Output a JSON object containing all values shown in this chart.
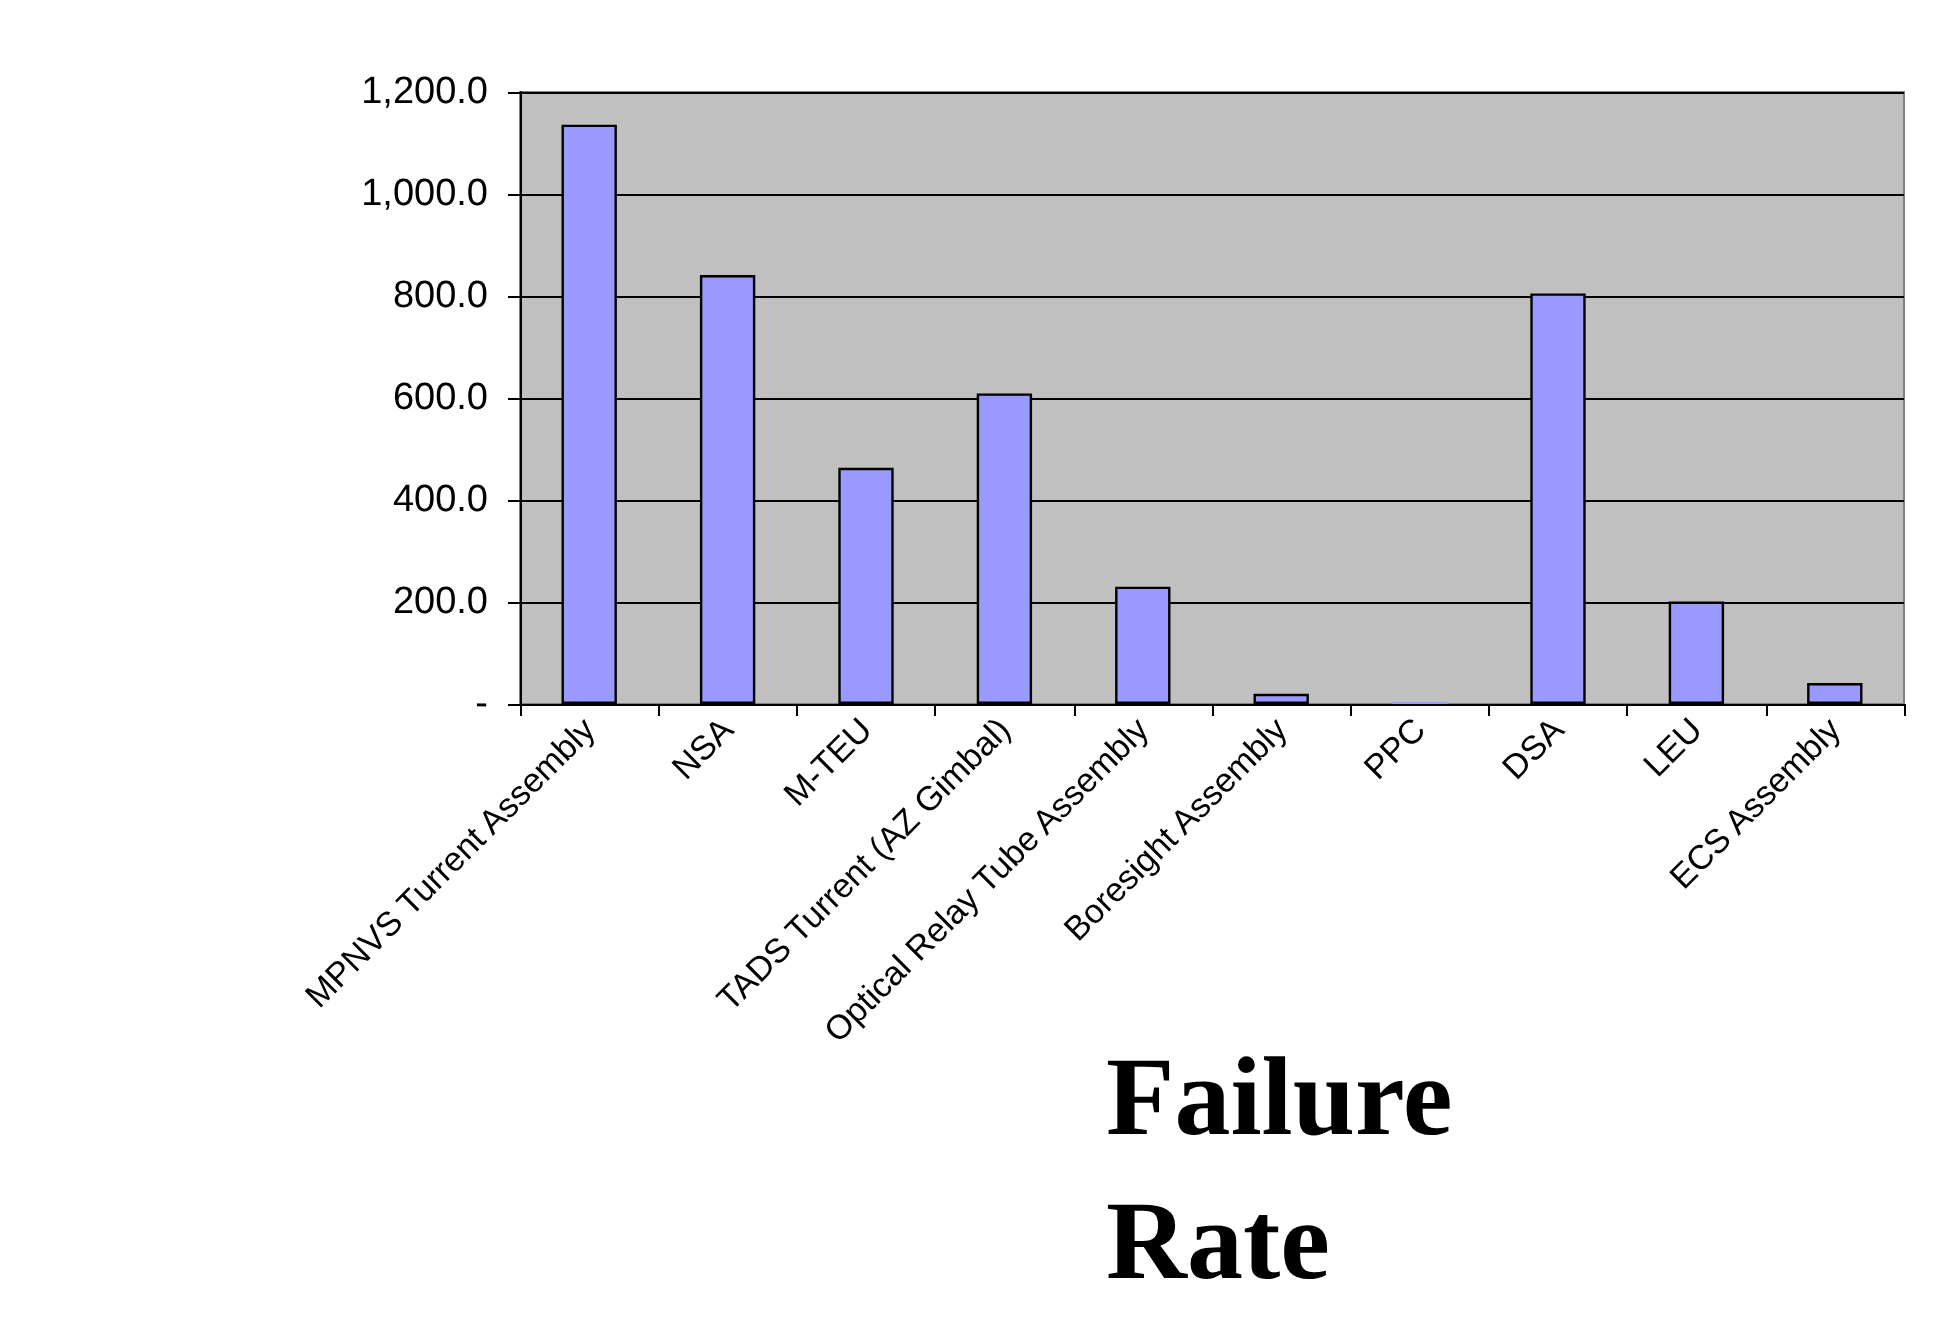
{
  "chart_data": {
    "type": "bar",
    "title": "Failure Rate",
    "categories": [
      "MPNVS Turrent Assembly",
      "NSA",
      "M-TEU",
      "TADS Turrent (AZ Gimbal)",
      "Optical Relay Tube Assembly",
      "Boresight Assembly",
      "PPC",
      "DSA",
      "LEU",
      "ECS Assembly"
    ],
    "values": [
      1136,
      841,
      463,
      609,
      230,
      20,
      4,
      805,
      201,
      41
    ],
    "color": "#9999ff",
    "ylim": [
      0,
      1200
    ],
    "yticks": [
      {
        "value": 0,
        "label": "-"
      },
      {
        "value": 200,
        "label": "200.0"
      },
      {
        "value": 400,
        "label": "400.0"
      },
      {
        "value": 600,
        "label": "600.0"
      },
      {
        "value": 800,
        "label": "800.0"
      },
      {
        "value": 1000,
        "label": "1,000.0"
      },
      {
        "value": 1200,
        "label": "1,200.0"
      }
    ],
    "grid": "y"
  }
}
